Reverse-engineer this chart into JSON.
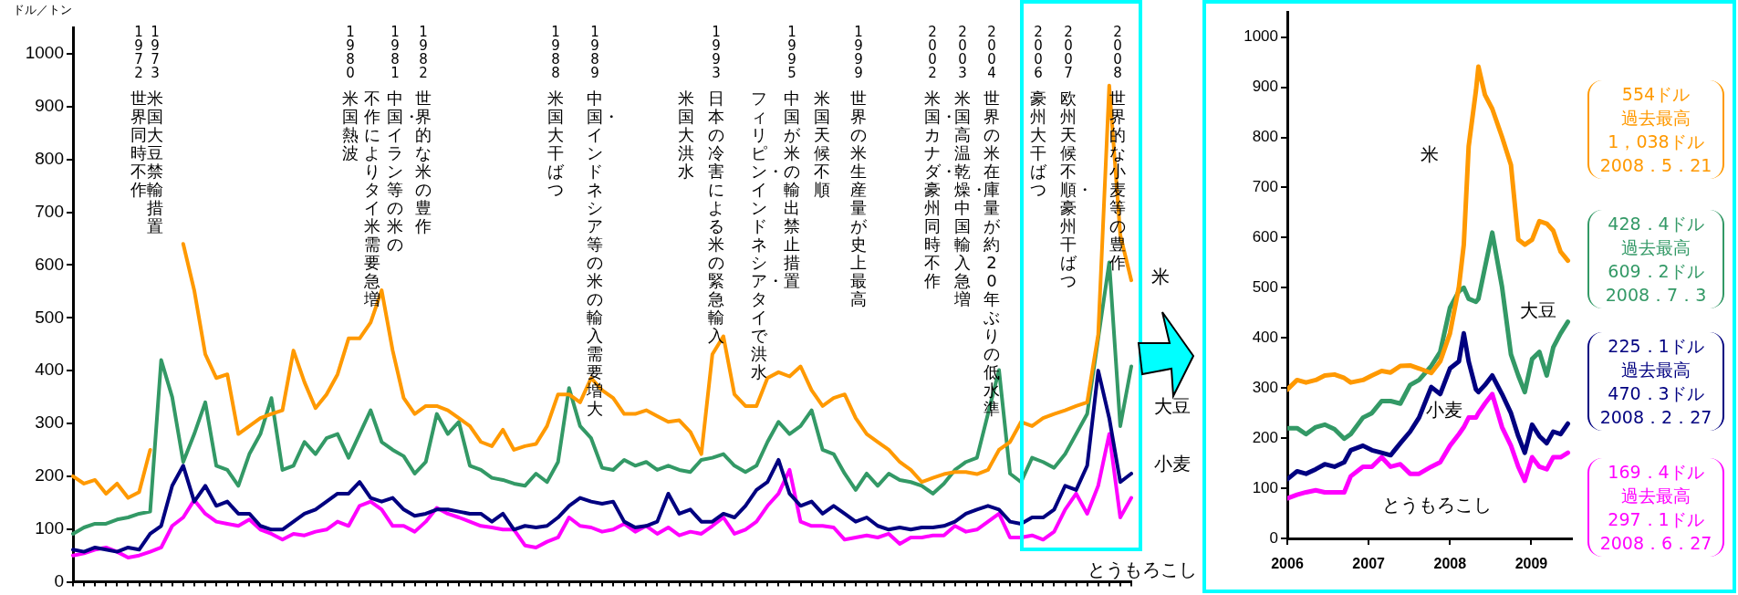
{
  "chart_data": [
    {
      "type": "line",
      "ylabel": "ドル／トン",
      "categories": [
        null,
        null,
        null,
        null,
        null,
        null,
        null,
        null,
        null,
        null,
        null,
        null,
        null,
        null,
        null,
        null,
        null,
        null,
        null,
        null,
        null,
        null,
        null,
        null,
        null,
        null,
        null,
        null,
        null,
        null,
        null,
        null,
        null,
        null,
        null,
        null,
        null,
        null,
        null,
        null,
        null,
        null,
        null,
        null,
        null,
        null,
        null,
        null,
        null,
        null,
        null,
        null,
        null,
        null,
        null,
        null,
        null,
        null,
        null,
        null,
        null,
        null,
        null,
        null,
        null,
        null,
        null,
        null,
        null,
        null,
        null,
        null,
        null,
        null,
        null,
        null,
        null,
        null,
        null,
        null,
        null,
        null,
        null,
        null,
        null,
        null,
        null,
        null,
        null,
        null,
        null,
        null,
        null,
        null,
        null,
        null,
        null
      ],
      "series": [
        {
          "name": "米",
          "color": "#ff9900",
          "values": [
            200,
            186,
            193,
            167,
            186,
            159,
            170,
            250,
            null,
            null,
            640,
            552,
            431,
            386,
            393,
            280,
            295,
            310,
            318,
            325,
            438,
            378,
            329,
            355,
            393,
            461,
            461,
            491,
            552,
            438,
            348,
            318,
            333,
            333,
            325,
            310,
            295,
            265,
            257,
            288,
            250,
            257,
            261,
            295,
            355,
            355,
            340,
            386,
            363,
            348,
            318,
            318,
            325,
            314,
            303,
            306,
            284,
            242,
            431,
            465,
            355,
            333,
            333,
            386,
            397,
            389,
            408,
            363,
            333,
            348,
            355,
            310,
            280,
            265,
            250,
            227,
            212,
            189,
            197,
            204,
            208,
            208,
            204,
            212,
            250,
            265,
            303,
            295,
            310,
            318,
            325,
            333,
            340,
            469,
            940,
            657,
            571
          ]
        },
        {
          "name": "大豆",
          "color": "#339966",
          "values": [
            91,
            103,
            110,
            110,
            118,
            122,
            129,
            133,
            420,
            350,
            227,
            280,
            340,
            220,
            212,
            182,
            242,
            280,
            348,
            212,
            220,
            265,
            242,
            272,
            280,
            235,
            280,
            325,
            265,
            250,
            238,
            205,
            227,
            318,
            280,
            303,
            220,
            212,
            197,
            193,
            186,
            182,
            205,
            189,
            227,
            367,
            295,
            272,
            216,
            212,
            231,
            220,
            227,
            212,
            220,
            212,
            208,
            231,
            235,
            242,
            220,
            208,
            220,
            265,
            303,
            280,
            295,
            325,
            250,
            242,
            205,
            174,
            205,
            182,
            205,
            193,
            189,
            182,
            167,
            186,
            212,
            227,
            235,
            318,
            401,
            205,
            189,
            235,
            227,
            216,
            242,
            280,
            318,
            461,
            605,
            295,
            408
          ]
        },
        {
          "name": "小麦",
          "color": "#000080",
          "values": [
            61,
            57,
            65,
            61,
            57,
            65,
            61,
            91,
            106,
            182,
            220,
            152,
            182,
            144,
            152,
            129,
            129,
            106,
            99,
            99,
            114,
            129,
            137,
            152,
            167,
            167,
            189,
            159,
            152,
            159,
            137,
            125,
            129,
            137,
            137,
            133,
            129,
            129,
            114,
            129,
            99,
            106,
            103,
            106,
            122,
            144,
            159,
            152,
            148,
            152,
            114,
            103,
            106,
            114,
            167,
            129,
            137,
            114,
            114,
            129,
            122,
            144,
            174,
            189,
            231,
            167,
            144,
            152,
            129,
            144,
            129,
            114,
            122,
            106,
            99,
            103,
            99,
            103,
            103,
            106,
            114,
            129,
            137,
            144,
            137,
            114,
            110,
            122,
            122,
            137,
            182,
            174,
            220,
            400,
            310,
            189,
            205
          ]
        },
        {
          "name": "とうもろこし",
          "color": "#ff00ff",
          "values": [
            50,
            54,
            61,
            65,
            57,
            46,
            50,
            57,
            65,
            106,
            122,
            155,
            129,
            114,
            110,
            106,
            118,
            99,
            91,
            80,
            91,
            88,
            95,
            99,
            114,
            106,
            144,
            152,
            137,
            106,
            106,
            95,
            114,
            140,
            129,
            122,
            114,
            106,
            103,
            99,
            99,
            69,
            65,
            76,
            84,
            122,
            106,
            103,
            95,
            99,
            110,
            95,
            106,
            91,
            103,
            88,
            95,
            91,
            106,
            122,
            91,
            99,
            114,
            144,
            167,
            212,
            114,
            106,
            106,
            103,
            80,
            84,
            88,
            84,
            91,
            72,
            84,
            84,
            88,
            88,
            106,
            95,
            99,
            114,
            129,
            84,
            84,
            88,
            80,
            95,
            137,
            167,
            129,
            182,
            280,
            122,
            159
          ]
        }
      ],
      "ylim": [
        0,
        1050
      ],
      "yticks": [
        0,
        100,
        200,
        300,
        400,
        500,
        600,
        700,
        800,
        900,
        1000
      ],
      "tick_labels": "y",
      "annotations": [
        "1972 世界同時不作",
        "1973 米国大豆禁輸措置",
        "1980 米国熱波",
        "1981 中国・イラン等の米の",
        "不作によりタイ米需要急増",
        "1982 世界的な米の豊作",
        "1988 米国大干ばつ",
        "1989 中国・インドネシア等の米の輸入需要増大",
        "1993 日本の冷害による米の緊急輸入",
        "米国大洪水",
        "1995 中国が米の輸出禁止措置",
        "米国天候不順",
        "フィリピン・インドネシア・タイで洪水",
        "1999 世界の米生産量が史上最高",
        "2002 米国・カナダ・豪州同時不作",
        "2003 米国高温乾燥・中国輸入急増",
        "2004 世界の米在庫量が約20年ぶりの低水準",
        "2006 豪州大干ばつ",
        "2007 欧州天候不順・豪州干ばつ",
        "2008 世界的な小麦等の豊作"
      ]
    },
    {
      "type": "line",
      "x": [
        2006.0,
        2006.12,
        2006.23,
        2006.35,
        2006.46,
        2006.58,
        2006.7,
        2006.78,
        2006.93,
        2007.04,
        2007.16,
        2007.27,
        2007.39,
        2007.51,
        2007.62,
        2007.77,
        2007.88,
        2008.0,
        2008.11,
        2008.17,
        2008.23,
        2008.32,
        2008.35,
        2008.43,
        2008.52,
        2008.64,
        2008.75,
        2008.84,
        2008.92,
        2009.01,
        2009.1,
        2009.19,
        2009.27,
        2009.36,
        2009.45
      ],
      "series": [
        {
          "name": "米",
          "color": "#ff9900",
          "values": [
            297,
            316,
            311,
            316,
            325,
            327,
            320,
            311,
            316,
            325,
            334,
            331,
            344,
            345,
            339,
            330,
            353,
            409,
            502,
            586,
            782,
            894,
            941,
            885,
            857,
            801,
            745,
            596,
            586,
            596,
            633,
            628,
            614,
            572,
            554
          ]
        },
        {
          "name": "大豆",
          "color": "#339966",
          "values": [
            220,
            220,
            208,
            222,
            227,
            218,
            199,
            208,
            241,
            250,
            274,
            274,
            269,
            306,
            316,
            344,
            372,
            460,
            493,
            500,
            478,
            472,
            478,
            540,
            610,
            502,
            367,
            325,
            292,
            358,
            372,
            325,
            381,
            409,
            432
          ]
        },
        {
          "name": "小麦",
          "color": "#000080",
          "values": [
            118,
            134,
            129,
            138,
            148,
            143,
            152,
            176,
            185,
            176,
            171,
            166,
            190,
            213,
            241,
            302,
            288,
            339,
            353,
            409,
            353,
            297,
            292,
            306,
            325,
            288,
            250,
            204,
            171,
            227,
            204,
            190,
            213,
            208,
            229
          ]
        },
        {
          "name": "とうもろこし",
          "color": "#ff00ff",
          "values": [
            80,
            87,
            92,
            96,
            92,
            92,
            92,
            124,
            143,
            143,
            162,
            143,
            148,
            129,
            129,
            143,
            152,
            185,
            208,
            222,
            241,
            241,
            250,
            269,
            288,
            222,
            185,
            143,
            115,
            162,
            143,
            138,
            162,
            162,
            171
          ]
        }
      ],
      "xlim": [
        2006,
        2009.5
      ],
      "xticks": [
        2006,
        2007,
        2008,
        2009
      ],
      "ylim": [
        0,
        1050
      ],
      "yticks": [
        0,
        100,
        200,
        300,
        400,
        500,
        600,
        700,
        800,
        900,
        1000
      ],
      "annotations": [
        "554ドル",
        "過去最高",
        "1，038ドル",
        "2008．5．21",
        "428．4ドル",
        "過去最高",
        "609．2ドル",
        "2008．7．3",
        "225．1ドル",
        "過去最高",
        "470．3ドル",
        "2008．2．27",
        "169．4ドル",
        "過去最高",
        "297．1ドル",
        "2008．6．27"
      ]
    }
  ]
}
